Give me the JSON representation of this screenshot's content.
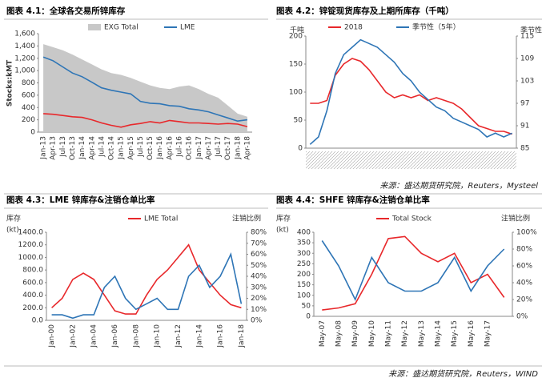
{
  "chart_data": [
    {
      "type": "line",
      "title": "图表 4.1：全球各交易所锌库存",
      "y_label": "Stocks:kMT",
      "categories": [
        "Jan-13",
        "Apr-13",
        "Jul-13",
        "Oct-13",
        "Jan-14",
        "Apr-14",
        "Jul-14",
        "Oct-14",
        "Jan-15",
        "Apr-15",
        "Jul-15",
        "Oct-15",
        "Jan-16",
        "Apr-16",
        "Jul-16",
        "Oct-16",
        "Jan-17",
        "Apr-17",
        "Jul-17",
        "Oct-17",
        "Jan-18",
        "Apr-18"
      ],
      "series": [
        {
          "name": "EXG Total",
          "color": "#c8c8c8",
          "area": true,
          "values": [
            1430,
            1380,
            1330,
            1260,
            1180,
            1100,
            1020,
            960,
            930,
            880,
            820,
            760,
            720,
            700,
            740,
            760,
            700,
            620,
            560,
            430,
            300,
            250
          ]
        },
        {
          "name": "LME",
          "color": "#2e75b6",
          "values": [
            1220,
            1160,
            1060,
            960,
            900,
            810,
            720,
            680,
            650,
            620,
            500,
            470,
            460,
            430,
            420,
            380,
            360,
            330,
            280,
            230,
            180,
            200
          ]
        },
        {
          "color": "#e8282b",
          "values": [
            300,
            290,
            270,
            250,
            240,
            200,
            150,
            110,
            80,
            120,
            140,
            170,
            150,
            190,
            170,
            150,
            150,
            140,
            130,
            140,
            130,
            90
          ]
        }
      ],
      "ylim": [
        0,
        1600
      ],
      "yticks": [
        0,
        200,
        400,
        600,
        800,
        {
          "value": 1000,
          "label": "1,000"
        },
        {
          "value": 1200,
          "label": "1,200"
        },
        {
          "value": 1400,
          "label": "1,400"
        },
        {
          "value": 1600,
          "label": "1,600"
        }
      ]
    },
    {
      "type": "line",
      "title": "图表 4.2：锌锭现货库存及上期所库存（千吨）",
      "y_label": "千吨",
      "y2_label": "季节性",
      "categories": [
        null,
        null,
        null,
        null,
        null,
        null,
        null,
        null,
        null,
        null,
        null,
        null,
        null,
        null,
        null,
        null,
        null,
        null,
        null,
        null,
        null,
        null,
        null,
        null,
        null
      ],
      "series": [
        {
          "name": "2018",
          "color": "#e8282b",
          "values": [
            80,
            80,
            85,
            130,
            150,
            160,
            155,
            140,
            120,
            100,
            90,
            95,
            90,
            95,
            85,
            90,
            85,
            80,
            70,
            55,
            40,
            35,
            30,
            30,
            25
          ]
        },
        {
          "name": "季节性（5年）",
          "color": "#2e75b6",
          "axis": "y2",
          "values": [
            86,
            88,
            95,
            105,
            110,
            112,
            114,
            113,
            112,
            110,
            108,
            105,
            103,
            100,
            98,
            96,
            95,
            93,
            92,
            91,
            90,
            88,
            89,
            88,
            89
          ]
        }
      ],
      "ylim": [
        0,
        200
      ],
      "yticks": [
        0,
        50,
        100,
        150,
        200
      ],
      "y2lim": [
        85,
        115
      ],
      "y2ticks": [
        85,
        91,
        97,
        103,
        109,
        115
      ]
    },
    {
      "type": "line",
      "title": "图表 4.3：LME 锌库存&注销仓单比率",
      "y_label": [
        "库存",
        "(kt)"
      ],
      "y2_label": "注销比例",
      "categories": [
        "Jan-00",
        null,
        "Jan-02",
        null,
        "Jan-04",
        null,
        "Jan-06",
        null,
        "Jan-08",
        null,
        "Jan-10",
        null,
        "Jan-12",
        null,
        "Jan-14",
        null,
        "Jan-16",
        null,
        "Jan-18"
      ],
      "series": [
        {
          "name": "LME Total",
          "color": "#e8282b",
          "values": [
            200,
            350,
            650,
            750,
            650,
            400,
            150,
            100,
            100,
            400,
            650,
            800,
            1000,
            1200,
            800,
            600,
            400,
            250,
            200
          ]
        },
        {
          "color": "#2e75b6",
          "axis": "y2",
          "values": [
            5,
            5,
            2,
            5,
            5,
            30,
            40,
            20,
            10,
            15,
            20,
            10,
            10,
            40,
            50,
            30,
            40,
            60,
            15
          ]
        }
      ],
      "ylim": [
        0,
        1400
      ],
      "yticks": [
        {
          "value": 0,
          "label": "0.0"
        },
        {
          "value": 200,
          "label": "200.0"
        },
        {
          "value": 400,
          "label": "400.0"
        },
        {
          "value": 600,
          "label": "600.0"
        },
        {
          "value": 800,
          "label": "800.0"
        },
        {
          "value": 1000,
          "label": "1000.0"
        },
        {
          "value": 1200,
          "label": "1200.0"
        },
        {
          "value": 1400,
          "label": "1400.0"
        }
      ],
      "y2lim": [
        0,
        80
      ],
      "y2ticks": [
        {
          "value": 0,
          "label": "0%"
        },
        {
          "value": 10,
          "label": "10%"
        },
        {
          "value": 20,
          "label": "20%"
        },
        {
          "value": 30,
          "label": "30%"
        },
        {
          "value": 40,
          "label": "40%"
        },
        {
          "value": 50,
          "label": "50%"
        },
        {
          "value": 60,
          "label": "60%"
        },
        {
          "value": 70,
          "label": "70%"
        },
        {
          "value": 80,
          "label": "80%"
        }
      ]
    },
    {
      "type": "line",
      "title": "图表 4.4：SHFE 锌库存&注销仓单比率",
      "y_label": [
        "库存",
        "(kt)"
      ],
      "y2_label": "注销比例",
      "categories": [
        "May-07",
        "May-08",
        "May-09",
        "May-10",
        "May-11",
        "May-12",
        "May-13",
        "May-14",
        "May-15",
        "May-16",
        "May-17",
        null
      ],
      "series": [
        {
          "name": "Total Stock",
          "color": "#e8282b",
          "values": [
            30,
            40,
            60,
            200,
            370,
            380,
            300,
            260,
            300,
            160,
            200,
            90
          ]
        },
        {
          "color": "#2e75b6",
          "axis": "y2",
          "values": [
            90,
            60,
            20,
            70,
            40,
            30,
            30,
            40,
            70,
            30,
            60,
            80
          ]
        }
      ],
      "ylim": [
        0,
        400
      ],
      "yticks": [
        0,
        50,
        100,
        150,
        200,
        250,
        300,
        350,
        400
      ],
      "y2lim": [
        0,
        100
      ],
      "y2ticks": [
        {
          "value": 0,
          "label": "0%"
        },
        {
          "value": 20,
          "label": "20%"
        },
        {
          "value": 40,
          "label": "40%"
        },
        {
          "value": 60,
          "label": "60%"
        },
        {
          "value": 80,
          "label": "80%"
        },
        {
          "value": 100,
          "label": "100%"
        }
      ]
    }
  ],
  "sources": [
    "来源：盛达期货研究院，Reuters，Mysteel",
    "来源：盛达期货研究院，Reuters，WIND"
  ]
}
